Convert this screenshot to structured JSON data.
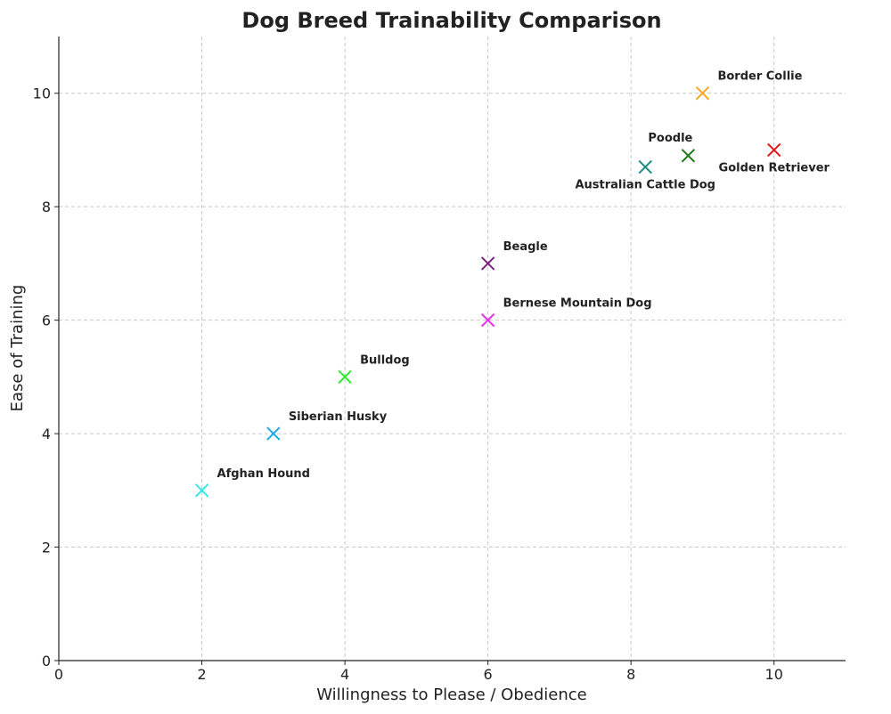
{
  "chart_data": {
    "type": "scatter",
    "title": "Dog Breed Trainability Comparison",
    "xlabel": "Willingness to Please / Obedience",
    "ylabel": "Ease of Training",
    "xlim": [
      0,
      11
    ],
    "ylim": [
      0,
      11
    ],
    "xticks": [
      0,
      2,
      4,
      6,
      8,
      10
    ],
    "yticks": [
      0,
      2,
      4,
      6,
      8,
      10
    ],
    "grid": true,
    "marker": "x",
    "points": [
      {
        "label": "Border Collie",
        "x": 9,
        "y": 10,
        "color": "#f5a623",
        "label_side": "above-right"
      },
      {
        "label": "Golden Retriever",
        "x": 10,
        "y": 9,
        "color": "#e8141a",
        "label_side": "below"
      },
      {
        "label": "Poodle",
        "x": 8.8,
        "y": 8.9,
        "color": "#1a7a1a",
        "label_side": "above-left"
      },
      {
        "label": "Australian Cattle Dog",
        "x": 8.2,
        "y": 8.7,
        "color": "#1a8a85",
        "label_side": "below"
      },
      {
        "label": "Beagle",
        "x": 6,
        "y": 7,
        "color": "#7a1f7a",
        "label_side": "above-right"
      },
      {
        "label": "Bernese Mountain Dog",
        "x": 6,
        "y": 6,
        "color": "#e833e8",
        "label_side": "above-right"
      },
      {
        "label": "Bulldog",
        "x": 4,
        "y": 5,
        "color": "#33e833",
        "label_side": "above-right"
      },
      {
        "label": "Siberian Husky",
        "x": 3,
        "y": 4,
        "color": "#1aaae8",
        "label_side": "above-right"
      },
      {
        "label": "Afghan Hound",
        "x": 2,
        "y": 3,
        "color": "#33e8e8",
        "label_side": "above-right"
      }
    ]
  }
}
